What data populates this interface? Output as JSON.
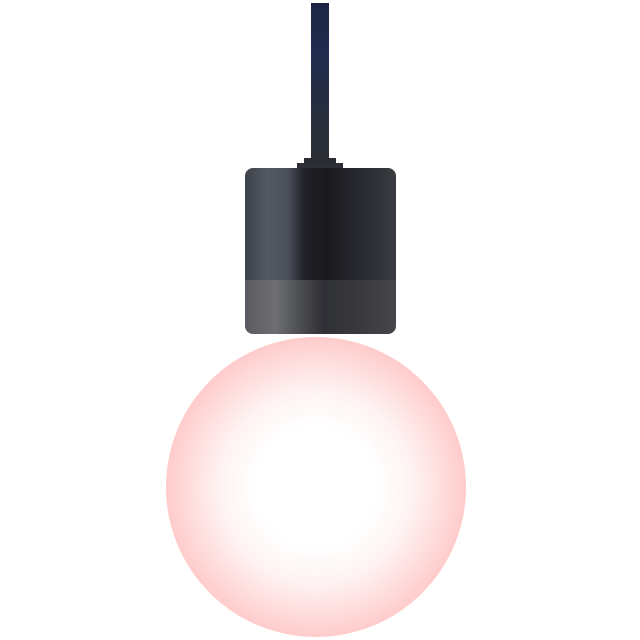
{
  "scene": {
    "subject": "pendant-lamp",
    "colors": {
      "background": "#ffffff",
      "cord": "#1f2848",
      "socket_dark": "#1b1b20",
      "socket_band": "#5a5b60",
      "bulb_glow": "#ffb0b0",
      "bulb_core": "#ffffff"
    },
    "parts": [
      "cord",
      "socket",
      "bulb"
    ]
  }
}
